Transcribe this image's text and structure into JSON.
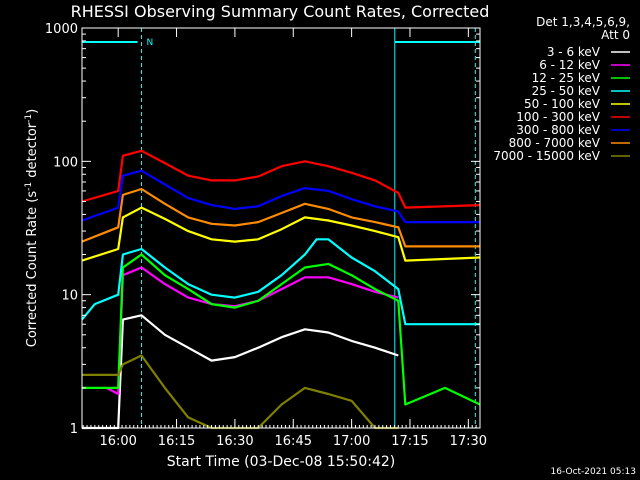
{
  "chart_data": {
    "type": "line",
    "title": "RHESSI Observing Summary Count Rates, Corrected",
    "xlabel": "Start Time (03-Dec-08 15:50:42)",
    "ylabel_main": "Corrected Count Rate (s",
    "ylabel_exp1": "-1",
    "ylabel_mid": " detector",
    "ylabel_exp2": "-1",
    "ylabel_end": ")",
    "x_range_minutes": [
      15.845,
      17.55
    ],
    "y_scale": "log",
    "y_range": [
      1,
      1000
    ],
    "x_ticks": [
      {
        "t": 16.0,
        "label": "16:00"
      },
      {
        "t": 16.25,
        "label": "16:15"
      },
      {
        "t": 16.5,
        "label": "16:30"
      },
      {
        "t": 16.75,
        "label": "16:45"
      },
      {
        "t": 17.0,
        "label": "17:00"
      },
      {
        "t": 17.25,
        "label": "17:15"
      },
      {
        "t": 17.5,
        "label": "17:30"
      }
    ],
    "y_ticks": [
      {
        "v": 1,
        "label": "1"
      },
      {
        "v": 10,
        "label": "10"
      },
      {
        "v": 100,
        "label": "100"
      },
      {
        "v": 1000,
        "label": "1000"
      }
    ],
    "legend_header": [
      "Det 1,3,4,5,6,9,",
      "Att 0"
    ],
    "legend_placement": "right",
    "night_marker_label": "N",
    "timestamp": "16-Oct-2021 05:13",
    "night_intervals": [
      [
        16.1,
        17.185
      ]
    ],
    "series": [
      {
        "name": "3 - 6 keV",
        "color": "#ffffff",
        "t": [
          15.845,
          16.0,
          16.02,
          16.1,
          16.2,
          16.3,
          16.4,
          16.5,
          16.6,
          16.7,
          16.8,
          16.9,
          17.0,
          17.1,
          17.2
        ],
        "y": [
          1,
          1,
          6.5,
          7.0,
          5.0,
          4.0,
          3.2,
          3.4,
          4.0,
          4.8,
          5.5,
          5.2,
          4.5,
          4.0,
          3.5
        ]
      },
      {
        "name": "6 - 12 keV",
        "color": "#ff00ff",
        "t": [
          15.95,
          16.0,
          16.02,
          16.1,
          16.2,
          16.3,
          16.4,
          16.5,
          16.6,
          16.7,
          16.8,
          16.9,
          17.0,
          17.1,
          17.2
        ],
        "y": [
          2.0,
          1.8,
          14,
          16,
          12,
          9.5,
          8.5,
          8.2,
          9.0,
          11,
          13.5,
          13.5,
          12,
          10.5,
          9.5
        ]
      },
      {
        "name": "12 - 25 keV",
        "color": "#00ff00",
        "t": [
          15.845,
          16.0,
          16.02,
          16.1,
          16.2,
          16.3,
          16.4,
          16.5,
          16.6,
          16.7,
          16.8,
          16.9,
          17.0,
          17.1,
          17.2,
          17.23,
          17.4,
          17.55
        ],
        "y": [
          2.0,
          2.0,
          16,
          20,
          14,
          11,
          8.5,
          8.0,
          9.0,
          12,
          16,
          17,
          14,
          11,
          9.0,
          1.5,
          2.0,
          1.5
        ]
      },
      {
        "name": "25 - 50 keV",
        "color": "#00ffff",
        "t": [
          15.845,
          15.9,
          16.0,
          16.02,
          16.1,
          16.2,
          16.3,
          16.4,
          16.5,
          16.6,
          16.7,
          16.8,
          16.85,
          16.9,
          17.0,
          17.1,
          17.2,
          17.23,
          17.55
        ],
        "y": [
          6.5,
          8.5,
          10,
          20,
          22,
          16,
          12,
          10,
          9.5,
          10.5,
          14,
          20,
          26,
          26,
          19,
          15,
          11,
          6.0,
          6.0
        ]
      },
      {
        "name": "50 - 100 keV",
        "color": "#ffff00",
        "t": [
          15.845,
          16.0,
          16.02,
          16.1,
          16.2,
          16.3,
          16.4,
          16.5,
          16.6,
          16.7,
          16.8,
          16.9,
          17.0,
          17.1,
          17.2,
          17.23,
          17.55
        ],
        "y": [
          18,
          22,
          38,
          45,
          37,
          30,
          26,
          25,
          26,
          31,
          38,
          36,
          33,
          30,
          27,
          18,
          19
        ]
      },
      {
        "name": "100 - 300 keV",
        "color": "#ff0000",
        "t": [
          15.845,
          16.0,
          16.02,
          16.1,
          16.2,
          16.3,
          16.4,
          16.5,
          16.6,
          16.7,
          16.8,
          16.9,
          17.0,
          17.1,
          17.2,
          17.23,
          17.55
        ],
        "y": [
          50,
          60,
          110,
          120,
          97,
          78,
          72,
          72,
          77,
          92,
          100,
          92,
          82,
          72,
          58,
          45,
          47
        ]
      },
      {
        "name": "300 - 800 keV",
        "color": "#0000ff",
        "t": [
          15.845,
          16.0,
          16.02,
          16.1,
          16.2,
          16.3,
          16.4,
          16.5,
          16.6,
          16.7,
          16.8,
          16.9,
          17.0,
          17.1,
          17.2,
          17.23,
          17.55
        ],
        "y": [
          36,
          45,
          78,
          85,
          67,
          53,
          47,
          44,
          46,
          55,
          63,
          60,
          52,
          46,
          42,
          35,
          35
        ]
      },
      {
        "name": "800 - 7000 keV",
        "color": "#ff8c00",
        "t": [
          15.845,
          16.0,
          16.02,
          16.1,
          16.2,
          16.3,
          16.4,
          16.5,
          16.6,
          16.7,
          16.8,
          16.9,
          17.0,
          17.1,
          17.2,
          17.23,
          17.55
        ],
        "y": [
          25,
          32,
          56,
          62,
          48,
          38,
          34,
          33,
          35,
          41,
          48,
          44,
          38,
          35,
          32,
          23,
          23
        ]
      },
      {
        "name": "7000 - 15000 keV",
        "color": "#808000",
        "t": [
          15.845,
          16.0,
          16.02,
          16.1,
          16.2,
          16.3,
          16.4,
          16.5,
          16.6,
          16.7,
          16.8,
          16.9,
          17.0,
          17.1,
          17.2
        ],
        "y": [
          2.5,
          2.5,
          3.0,
          3.5,
          2.0,
          1.2,
          1,
          1,
          1,
          1.5,
          2.0,
          1.8,
          1.6,
          1,
          1
        ]
      }
    ]
  }
}
